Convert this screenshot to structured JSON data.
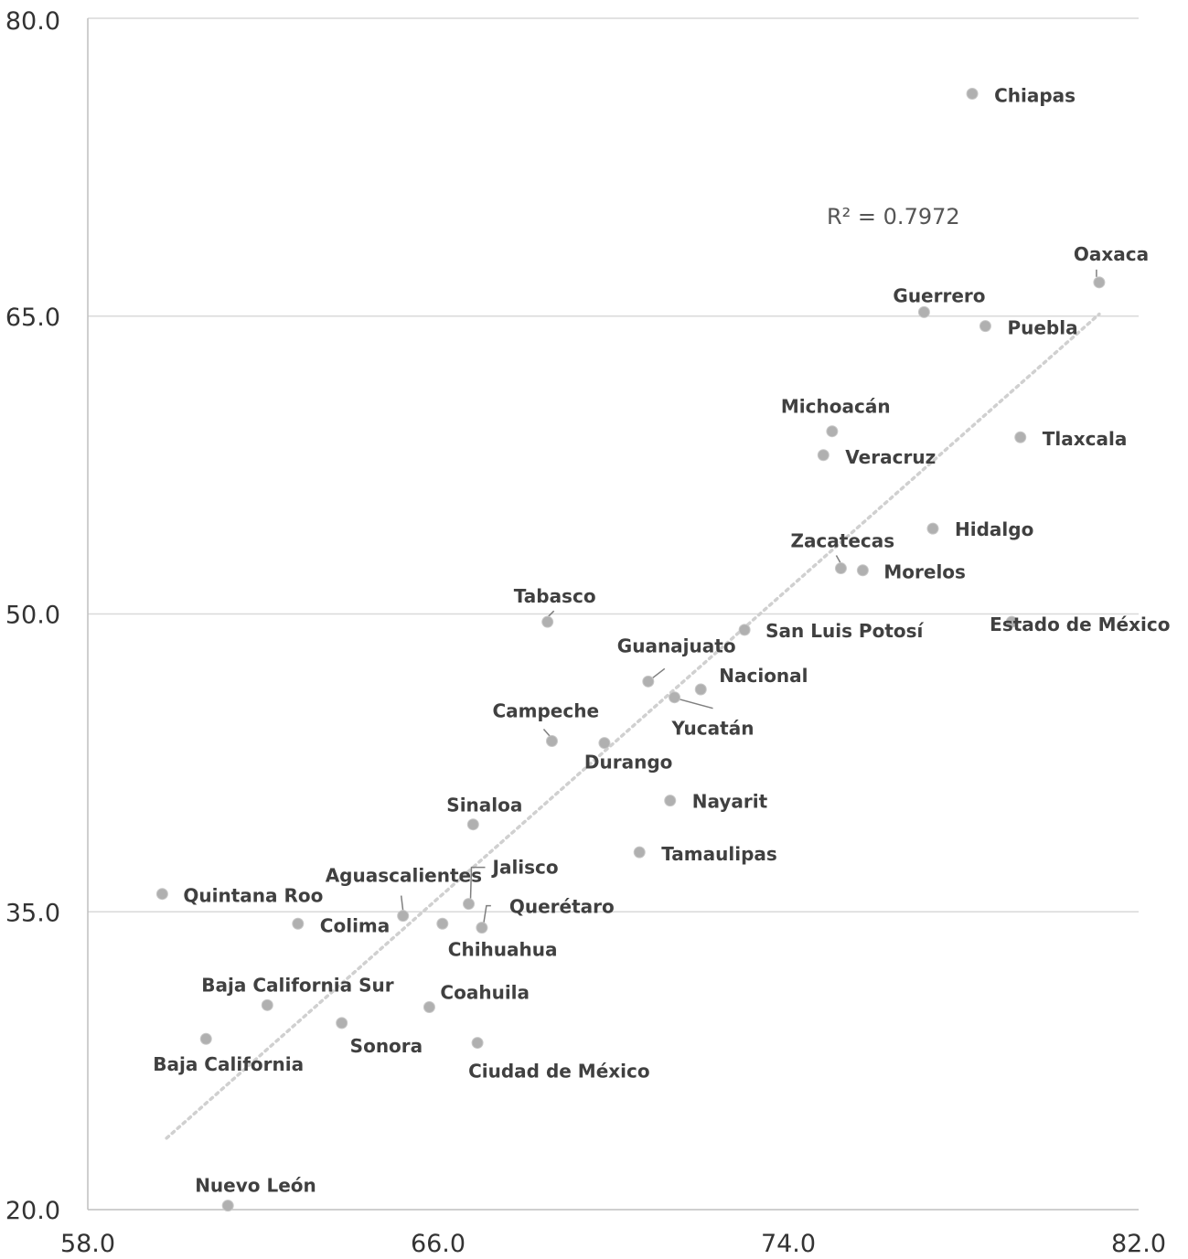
{
  "chart_data": {
    "type": "scatter",
    "xlim": [
      58,
      82
    ],
    "ylim": [
      20,
      80
    ],
    "x_ticks": [
      "58.0",
      "66.0",
      "74.0",
      "82.0"
    ],
    "y_ticks": [
      "20.0",
      "35.0",
      "50.0",
      "65.0",
      "80.0"
    ],
    "grid": "horizontal",
    "point_color": "#b0b0b0",
    "trendline": {
      "x": [
        59.8,
        81.1
      ],
      "y": [
        23.6,
        65.1
      ],
      "style": "dotted",
      "color": "#d0d0d0"
    },
    "annotation": "R² = 0.7972",
    "points": [
      {
        "name": "Chiapas",
        "x": 78.2,
        "y": 76.2
      },
      {
        "name": "Oaxaca",
        "x": 81.1,
        "y": 66.7
      },
      {
        "name": "Guerrero",
        "x": 77.1,
        "y": 65.2
      },
      {
        "name": "Puebla",
        "x": 78.5,
        "y": 64.5
      },
      {
        "name": "Michoacán",
        "x": 75.0,
        "y": 59.2
      },
      {
        "name": "Tlaxcala",
        "x": 79.3,
        "y": 58.9
      },
      {
        "name": "Veracruz",
        "x": 74.8,
        "y": 58.0
      },
      {
        "name": "Hidalgo",
        "x": 77.3,
        "y": 54.3
      },
      {
        "name": "Zacatecas",
        "x": 75.2,
        "y": 52.3
      },
      {
        "name": "Morelos",
        "x": 75.7,
        "y": 52.2
      },
      {
        "name": "Tabasco",
        "x": 68.5,
        "y": 49.6
      },
      {
        "name": "Estado de México",
        "x": 79.1,
        "y": 49.6
      },
      {
        "name": "San Luis Potosí",
        "x": 73.0,
        "y": 49.2
      },
      {
        "name": "Guanajuato",
        "x": 70.8,
        "y": 46.6
      },
      {
        "name": "Nacional",
        "x": 72.0,
        "y": 46.2
      },
      {
        "name": "Yucatán",
        "x": 71.4,
        "y": 45.8
      },
      {
        "name": "Campeche",
        "x": 68.6,
        "y": 43.6
      },
      {
        "name": "Durango",
        "x": 69.8,
        "y": 43.5
      },
      {
        "name": "Nayarit",
        "x": 71.3,
        "y": 40.6
      },
      {
        "name": "Sinaloa",
        "x": 66.8,
        "y": 39.4
      },
      {
        "name": "Tamaulipas",
        "x": 70.6,
        "y": 38.0
      },
      {
        "name": "Quintana Roo",
        "x": 59.7,
        "y": 35.9
      },
      {
        "name": "Jalisco",
        "x": 66.7,
        "y": 35.4
      },
      {
        "name": "Aguascalientes",
        "x": 65.2,
        "y": 34.8
      },
      {
        "name": "Colima",
        "x": 62.8,
        "y": 34.4
      },
      {
        "name": "Chihuahua",
        "x": 66.1,
        "y": 34.4
      },
      {
        "name": "Querétaro",
        "x": 67.0,
        "y": 34.2
      },
      {
        "name": "Baja California Sur",
        "x": 62.1,
        "y": 30.3
      },
      {
        "name": "Coahuila",
        "x": 65.8,
        "y": 30.2
      },
      {
        "name": "Sonora",
        "x": 63.8,
        "y": 29.4
      },
      {
        "name": "Baja California",
        "x": 60.7,
        "y": 28.6
      },
      {
        "name": "Ciudad de México",
        "x": 66.9,
        "y": 28.4
      },
      {
        "name": "Nuevo León",
        "x": 61.2,
        "y": 20.2
      }
    ]
  }
}
